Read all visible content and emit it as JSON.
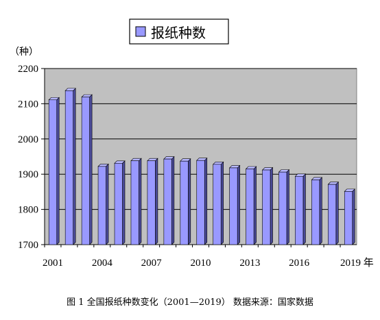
{
  "chart_data": {
    "type": "bar",
    "legend": "报纸种数",
    "legend_position": "top",
    "unit_label": "（种）",
    "ylim": [
      1700,
      2200
    ],
    "yticks": [
      1700,
      1800,
      1900,
      2000,
      2100,
      2200
    ],
    "grid": true,
    "plot_background": "#c0c0c0",
    "bar_color": "#9999ff",
    "categories": [
      "2001",
      "2002",
      "2003",
      "2004",
      "2005",
      "2006",
      "2007",
      "2008",
      "2009",
      "2010",
      "2011",
      "2012",
      "2013",
      "2014",
      "2015",
      "2016",
      "2017",
      "2018",
      "2019"
    ],
    "x_tick_labels": [
      {
        "index": 0,
        "label": "2001"
      },
      {
        "index": 3,
        "label": "2004"
      },
      {
        "index": 6,
        "label": "2007"
      },
      {
        "index": 9,
        "label": "2010"
      },
      {
        "index": 12,
        "label": "2013"
      },
      {
        "index": 15,
        "label": "2016"
      },
      {
        "index": 18,
        "label": "2019 年"
      }
    ],
    "series": [
      {
        "name": "报纸种数",
        "values": [
          2111,
          2137,
          2119,
          1922,
          1931,
          1938,
          1938,
          1943,
          1937,
          1939,
          1928,
          1918,
          1915,
          1912,
          1906,
          1894,
          1884,
          1871,
          1851
        ]
      }
    ]
  },
  "caption": "图 1  全国报纸种数变化（2001—2019）   数据来源：国家数据"
}
